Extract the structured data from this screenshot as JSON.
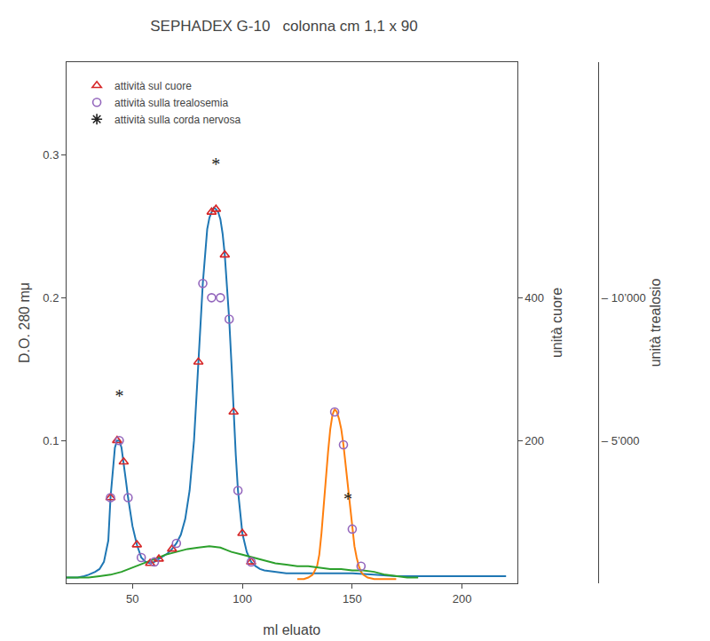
{
  "chart_data": {
    "type": "line",
    "title": "SEPHADEX G-10   colonna cm 1,1 x 90",
    "x_label": "ml eluato",
    "y_label": "D.O. 280 mμ",
    "y2_label": "unità cuore",
    "y3_label": "unità trealosio",
    "xlim": [
      20,
      225
    ],
    "xticks": [
      50,
      100,
      150,
      200
    ],
    "ylim": [
      0,
      0.365
    ],
    "yticks": [
      0.1,
      0.2,
      0.3
    ],
    "y2lim": [
      0,
      730
    ],
    "y2ticks": [
      200,
      400
    ],
    "y3lim": [
      0,
      18250
    ],
    "y3ticks": [
      {
        "value": 5000,
        "label": "– 5’000"
      },
      {
        "value": 10000,
        "label": "– 10’000"
      }
    ],
    "grid": false,
    "legend": "upper left",
    "series": [
      {
        "type": "line",
        "x": [
          20,
          25,
          28,
          30,
          33,
          35,
          37,
          39,
          40,
          41,
          42,
          43,
          44,
          45,
          46,
          47,
          48,
          50,
          52,
          54,
          56,
          58,
          60,
          62,
          64,
          66,
          68,
          70,
          72,
          74,
          76,
          78,
          80,
          82,
          84,
          85,
          86,
          87,
          88,
          89,
          90,
          91,
          92,
          93,
          94,
          95,
          96,
          97,
          98,
          100,
          102,
          104,
          106,
          108,
          110,
          115,
          120,
          125,
          130,
          140,
          150,
          160,
          170,
          180,
          190,
          200,
          210,
          220
        ],
        "values": [
          0.004,
          0.004,
          0.005,
          0.006,
          0.008,
          0.01,
          0.015,
          0.03,
          0.06,
          0.08,
          0.095,
          0.1,
          0.1,
          0.095,
          0.085,
          0.072,
          0.06,
          0.04,
          0.027,
          0.018,
          0.015,
          0.014,
          0.015,
          0.017,
          0.019,
          0.021,
          0.024,
          0.028,
          0.034,
          0.045,
          0.065,
          0.1,
          0.155,
          0.21,
          0.248,
          0.256,
          0.26,
          0.263,
          0.262,
          0.26,
          0.255,
          0.245,
          0.23,
          0.21,
          0.185,
          0.155,
          0.12,
          0.09,
          0.065,
          0.035,
          0.022,
          0.015,
          0.012,
          0.01,
          0.009,
          0.008,
          0.007,
          0.007,
          0.007,
          0.007,
          0.007,
          0.006,
          0.005,
          0.005,
          0.005,
          0.005,
          0.005,
          0.005
        ]
      },
      {
        "type": "line",
        "x": [
          125,
          128,
          130,
          132,
          134,
          135,
          136,
          137,
          138,
          139,
          140,
          141,
          142,
          143,
          144,
          145,
          146,
          147,
          148,
          149,
          150,
          151,
          152,
          153,
          154,
          155,
          157,
          160,
          165,
          170
        ],
        "values": [
          0.003,
          0.003,
          0.004,
          0.006,
          0.012,
          0.02,
          0.035,
          0.055,
          0.075,
          0.092,
          0.108,
          0.118,
          0.122,
          0.12,
          0.115,
          0.108,
          0.097,
          0.083,
          0.068,
          0.052,
          0.038,
          0.026,
          0.018,
          0.012,
          0.008,
          0.006,
          0.004,
          0.003,
          0.003,
          0.003
        ]
      },
      {
        "type": "line",
        "x": [
          20,
          25,
          30,
          35,
          40,
          45,
          50,
          55,
          60,
          65,
          70,
          75,
          80,
          85,
          90,
          95,
          100,
          105,
          110,
          115,
          120,
          125,
          130,
          135,
          140,
          145,
          150,
          155,
          160,
          165,
          170,
          175,
          180
        ],
        "values": [
          0.004,
          0.004,
          0.004,
          0.005,
          0.006,
          0.008,
          0.011,
          0.014,
          0.017,
          0.02,
          0.022,
          0.024,
          0.025,
          0.026,
          0.025,
          0.022,
          0.02,
          0.018,
          0.016,
          0.014,
          0.013,
          0.012,
          0.012,
          0.011,
          0.01,
          0.01,
          0.009,
          0.009,
          0.008,
          0.006,
          0.005,
          0.004,
          0.004
        ]
      },
      {
        "name": "attività sul cuore",
        "type": "scatter",
        "marker": "triangle",
        "x": [
          40,
          43,
          46,
          52,
          58,
          62,
          68,
          80,
          86,
          88,
          92,
          96,
          100,
          104
        ],
        "values": [
          0.06,
          0.1,
          0.085,
          0.027,
          0.014,
          0.017,
          0.024,
          0.155,
          0.26,
          0.262,
          0.23,
          0.12,
          0.035,
          0.015
        ]
      },
      {
        "name": "attività sulla trealosemia",
        "type": "scatter",
        "marker": "circle",
        "x": [
          40,
          44,
          48,
          54,
          60,
          70,
          82,
          86,
          90,
          94,
          98,
          104,
          142,
          146,
          150,
          154
        ],
        "values": [
          0.06,
          0.1,
          0.06,
          0.018,
          0.015,
          0.028,
          0.21,
          0.2,
          0.2,
          0.185,
          0.065,
          0.015,
          0.12,
          0.097,
          0.038,
          0.012
        ]
      },
      {
        "name": "attività sulla corda nervosa",
        "type": "text",
        "marker": "star",
        "x": [
          44,
          88,
          148
        ],
        "values": [
          0.13,
          0.292,
          0.058
        ],
        "labels": [
          "*",
          "*",
          "*"
        ]
      }
    ]
  }
}
